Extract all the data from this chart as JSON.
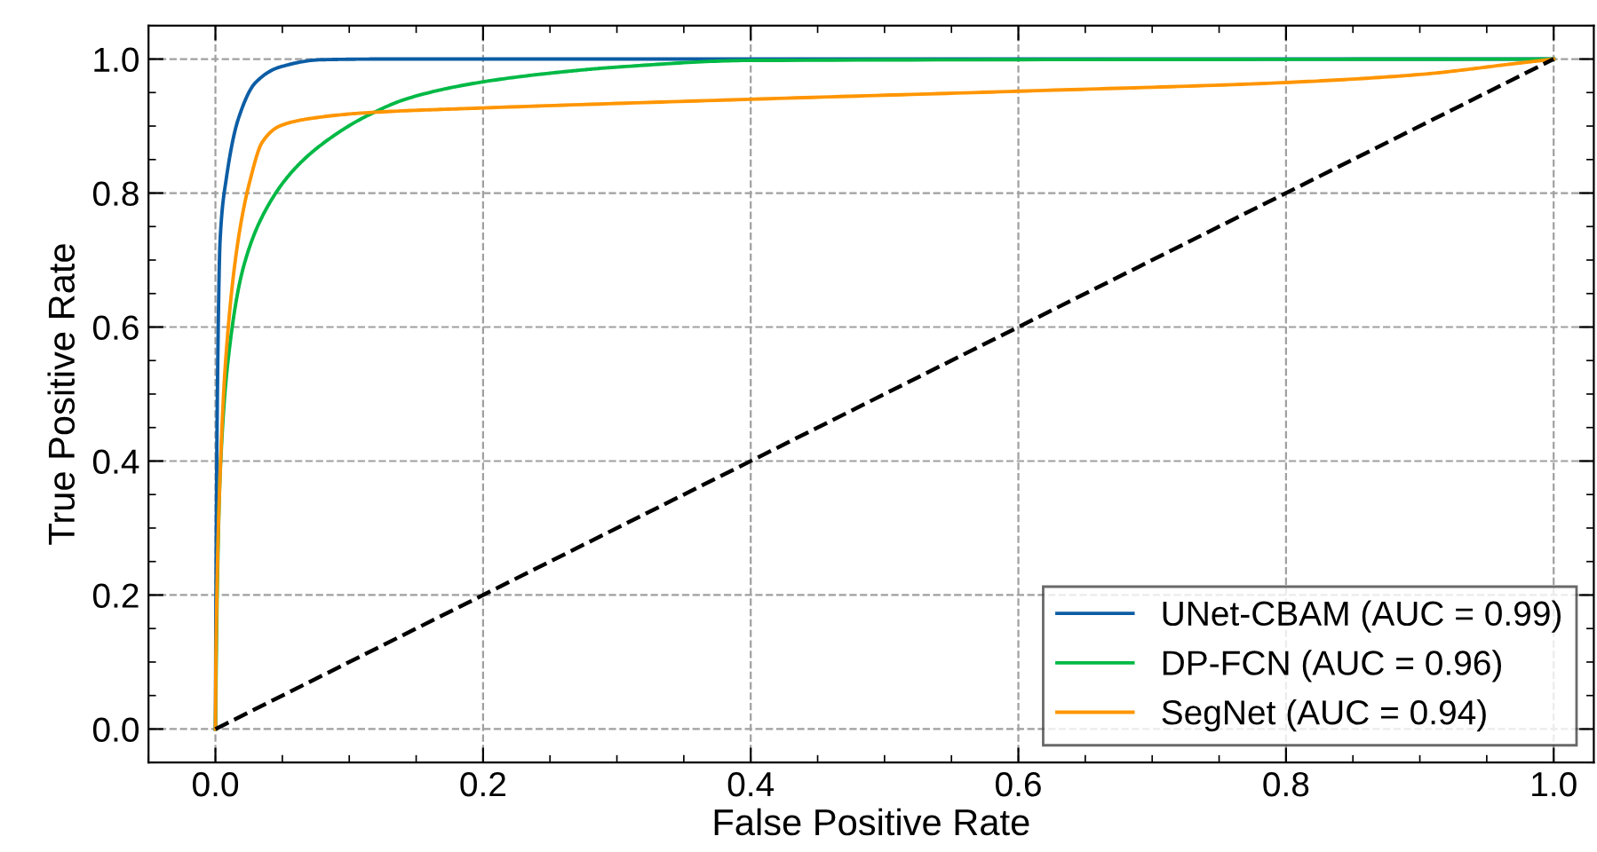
{
  "chart_data": {
    "type": "line",
    "xlabel": "False Positive Rate",
    "ylabel": "True Positive Rate",
    "xlim": [
      -0.05,
      1.03
    ],
    "ylim": [
      -0.05,
      1.05
    ],
    "xticks": [
      {
        "value": 0,
        "label": "0.0"
      },
      0.2,
      0.4,
      0.6,
      0.8,
      {
        "value": 1,
        "label": "1.0"
      }
    ],
    "yticks": [
      {
        "value": 0,
        "label": "0.0"
      },
      0.2,
      0.4,
      0.6,
      0.8,
      {
        "value": 1,
        "label": "1.0"
      }
    ],
    "grid": true,
    "legend": "lower right",
    "line_style": "solid",
    "marker": "none",
    "series": [
      {
        "name": "UNet-CBAM (AUC = 0.99)",
        "color": "#0c5da5",
        "x": [
          0,
          0.0004,
          0.0013,
          0.0035,
          0.008,
          0.017,
          0.03,
          0.048,
          0.079,
          0.123,
          1.0
        ],
        "values": [
          0,
          0.2,
          0.47,
          0.73,
          0.82,
          0.91,
          0.965,
          0.988,
          0.999,
          1.0,
          1.0
        ]
      },
      {
        "name": "DP-FCN (AUC = 0.96)",
        "color": "#00b945",
        "x": [
          0,
          0.0013,
          0.0035,
          0.01,
          0.021,
          0.039,
          0.061,
          0.088,
          0.114,
          0.145,
          0.2,
          0.265,
          0.3,
          0.4,
          1.0
        ],
        "values": [
          0,
          0.2,
          0.38,
          0.56,
          0.69,
          0.78,
          0.84,
          0.885,
          0.916,
          0.942,
          0.966,
          0.982,
          0.988,
          0.998,
          1.0
        ]
      },
      {
        "name": "SegNet (AUC = 0.94)",
        "color": "#ff9500",
        "x": [
          0,
          0.0004,
          0.0035,
          0.008,
          0.017,
          0.026,
          0.035,
          0.048,
          0.07,
          0.114,
          0.2,
          0.4,
          0.6,
          0.8,
          0.9,
          0.97,
          1.0
        ],
        "values": [
          0,
          0.11,
          0.38,
          0.56,
          0.73,
          0.82,
          0.876,
          0.9,
          0.911,
          0.92,
          0.927,
          0.94,
          0.952,
          0.965,
          0.977,
          0.993,
          1.0
        ]
      },
      {
        "color": "#000000",
        "line_style": "dashed",
        "x": [
          0,
          1
        ],
        "values": [
          0,
          1
        ]
      }
    ]
  }
}
